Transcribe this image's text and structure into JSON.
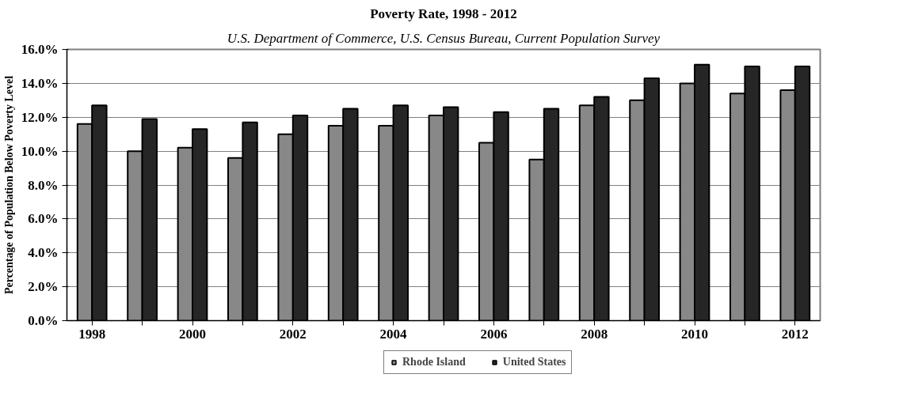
{
  "chart_data": {
    "type": "bar",
    "title": "Poverty Rate, 1998 - 2012",
    "subtitle": "U.S. Department of Commerce, U.S. Census Bureau, Current Population Survey",
    "ylabel": "Percentage of Population Below Poverty Level",
    "categories": [
      "1998",
      null,
      "2000",
      null,
      "2002",
      null,
      "2004",
      null,
      "2006",
      null,
      "2008",
      null,
      "2010",
      null,
      "2012"
    ],
    "series": [
      {
        "name": "Rhode Island",
        "color": "#888888",
        "values": [
          11.6,
          10.0,
          10.2,
          9.6,
          11.0,
          11.5,
          11.5,
          12.1,
          10.5,
          9.5,
          12.7,
          13.0,
          14.0,
          13.4,
          13.6
        ]
      },
      {
        "name": "United States",
        "color": "#262626",
        "values": [
          12.7,
          11.9,
          11.3,
          11.7,
          12.1,
          12.5,
          12.7,
          12.6,
          12.3,
          12.5,
          13.2,
          14.3,
          15.1,
          15.0,
          15.0
        ]
      }
    ],
    "ylim": [
      0,
      16
    ],
    "yticks": [
      {
        "value": 0,
        "label": "0.0%"
      },
      {
        "value": 2,
        "label": "2.0%"
      },
      {
        "value": 4,
        "label": "4.0%"
      },
      {
        "value": 6,
        "label": "6.0%"
      },
      {
        "value": 8,
        "label": "8.0%"
      },
      {
        "value": 10,
        "label": "10.0%"
      },
      {
        "value": 12,
        "label": "12.0%"
      },
      {
        "value": 14,
        "label": "14.0%"
      },
      {
        "value": 16,
        "label": "16.0%"
      }
    ],
    "grid": "y",
    "legend": "bottom"
  }
}
